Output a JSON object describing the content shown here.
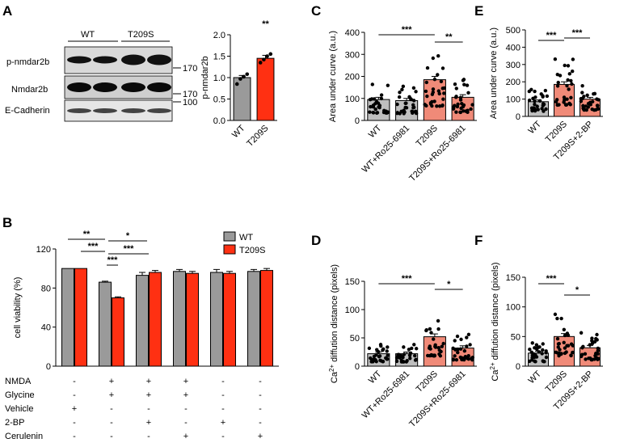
{
  "panels": {
    "A": {
      "label": "A",
      "blot": {
        "groups": [
          "WT",
          "T209S"
        ],
        "rows": [
          "p-nmdar2b",
          "Nmdar2b",
          "E-Cadherin"
        ],
        "markers": [
          "170",
          "170",
          "100"
        ]
      }
    },
    "B": {
      "label": "B"
    },
    "C": {
      "label": "C"
    },
    "D": {
      "label": "D"
    },
    "E": {
      "label": "E"
    },
    "F": {
      "label": "F"
    }
  },
  "treatment_table": {
    "rows": [
      {
        "label": "NMDA",
        "signs": [
          "-",
          "+",
          "+",
          "+",
          "-",
          "-"
        ]
      },
      {
        "label": "Glycine",
        "signs": [
          "-",
          "+",
          "+",
          "+",
          "-",
          "-"
        ]
      },
      {
        "label": "Vehicle",
        "signs": [
          "+",
          "-",
          "-",
          "-",
          "-",
          "-"
        ]
      },
      {
        "label": "2-BP",
        "signs": [
          "-",
          "-",
          "+",
          "-",
          "+",
          "-"
        ]
      },
      {
        "label": "Cerulenin",
        "signs": [
          "-",
          "-",
          "-",
          "+",
          "-",
          "+"
        ]
      }
    ]
  },
  "colors": {
    "wt": "#9a9a9a",
    "t209s": "#ff3012",
    "wt_light": "#bfbfbf",
    "t209s_light": "#f08a78"
  },
  "chart_data": [
    {
      "id": "A",
      "type": "bar",
      "ylabel": "p-nmdar2b",
      "categories": [
        "WT",
        "T209S"
      ],
      "values": [
        1.0,
        1.45
      ],
      "errors": [
        0.05,
        0.07
      ],
      "ylim": [
        0,
        2.0
      ],
      "yticks": [
        "0.0",
        "0.5",
        "1.0",
        "1.5",
        "2.0"
      ],
      "points": [
        [
          0.85,
          0.97,
          1.02,
          1.08
        ],
        [
          1.35,
          1.42,
          1.5,
          1.55
        ]
      ],
      "significance": [
        {
          "from": 1,
          "to": 1,
          "text": "**"
        }
      ]
    },
    {
      "id": "B",
      "type": "bar",
      "ylabel": "cell viability (%)",
      "ylim": [
        0,
        120
      ],
      "yticks": [
        "0",
        "40",
        "80",
        "120"
      ],
      "series": [
        {
          "name": "WT",
          "values": [
            100,
            86,
            93,
            97,
            96,
            97
          ],
          "errors": [
            0,
            1,
            3,
            2,
            3,
            2
          ]
        },
        {
          "name": "T209S",
          "values": [
            100,
            70,
            96,
            95,
            95,
            98
          ],
          "errors": [
            0,
            1,
            2,
            2,
            2,
            2
          ]
        }
      ],
      "significance": [
        {
          "text": "**"
        },
        {
          "text": "*"
        },
        {
          "text": "***"
        },
        {
          "text": "***"
        },
        {
          "text": "***"
        }
      ]
    },
    {
      "id": "C",
      "type": "bar",
      "ylabel": "Area under curve (a.u.)",
      "categories": [
        "WT",
        "WT+Ro25-6981",
        "T209S",
        "T209S+Ro25-6981"
      ],
      "values": [
        95,
        90,
        185,
        105
      ],
      "errors": [
        10,
        10,
        15,
        12
      ],
      "ylim": [
        0,
        400
      ],
      "yticks": [
        "0",
        "100",
        "200",
        "300",
        "400"
      ],
      "significance": [
        {
          "from": 0,
          "to": 2,
          "text": "***"
        },
        {
          "from": 2,
          "to": 3,
          "text": "**"
        }
      ]
    },
    {
      "id": "D",
      "type": "bar",
      "ylabel": "Ca2+ diffution distance (pixels)",
      "ylabel_pre": "Ca",
      "ylabel_sup": "2+",
      "ylabel_post": " diffution distance (pixels)",
      "categories": [
        "WT",
        "WT+Ro25-6981",
        "T209S",
        "T209S+Ro25-6981"
      ],
      "values": [
        22,
        22,
        52,
        32
      ],
      "errors": [
        3,
        3,
        5,
        4
      ],
      "ylim": [
        0,
        150
      ],
      "yticks": [
        "0",
        "50",
        "100",
        "150"
      ],
      "significance": [
        {
          "from": 0,
          "to": 2,
          "text": "***"
        },
        {
          "from": 2,
          "to": 3,
          "text": "*"
        }
      ]
    },
    {
      "id": "E",
      "type": "bar",
      "ylabel": "Area under curve (a.u.)",
      "categories": [
        "WT",
        "T209S",
        "T209S+2-BP"
      ],
      "values": [
        85,
        185,
        100
      ],
      "errors": [
        10,
        15,
        10
      ],
      "ylim": [
        0,
        500
      ],
      "yticks": [
        "0",
        "100",
        "200",
        "300",
        "400",
        "500"
      ],
      "significance": [
        {
          "from": 0,
          "to": 1,
          "text": "***"
        },
        {
          "from": 1,
          "to": 2,
          "text": "***"
        }
      ]
    },
    {
      "id": "F",
      "type": "bar",
      "ylabel": "Ca2+ diffution distance (pixels)",
      "ylabel_pre": "Ca",
      "ylabel_sup": "2+",
      "ylabel_post": " diffution distance (pixels)",
      "categories": [
        "WT",
        "T209S",
        "T209S+2-BP"
      ],
      "values": [
        22,
        50,
        31
      ],
      "errors": [
        3,
        5,
        4
      ],
      "ylim": [
        0,
        150
      ],
      "yticks": [
        "0",
        "50",
        "100",
        "150"
      ],
      "significance": [
        {
          "from": 0,
          "to": 1,
          "text": "***"
        },
        {
          "from": 1,
          "to": 2,
          "text": "*"
        }
      ]
    }
  ]
}
